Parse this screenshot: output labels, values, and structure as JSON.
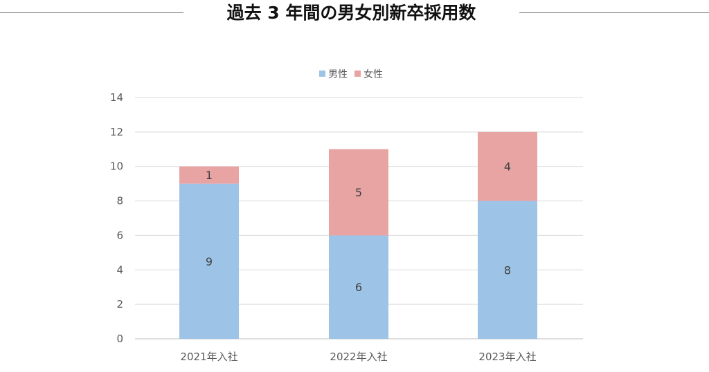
{
  "header": {
    "title": "過去 3 年間の男女別新卒採用数"
  },
  "colors": {
    "male": "#9dc3e6",
    "female": "#e8a3a3",
    "grid": "#d9d9d9",
    "text": "#595959"
  },
  "chart_data": {
    "type": "bar",
    "stacked": true,
    "title": "",
    "categories": [
      "2021年入社",
      "2022年入社",
      "2023年入社"
    ],
    "series": [
      {
        "name": "男性",
        "values": [
          9,
          6,
          8
        ]
      },
      {
        "name": "女性",
        "values": [
          1,
          5,
          4
        ]
      }
    ],
    "ylim": [
      0,
      14
    ],
    "yticks": [
      0,
      2,
      4,
      6,
      8,
      10,
      12,
      14
    ],
    "grid": true,
    "legend": "top-center",
    "data_labels": true
  }
}
